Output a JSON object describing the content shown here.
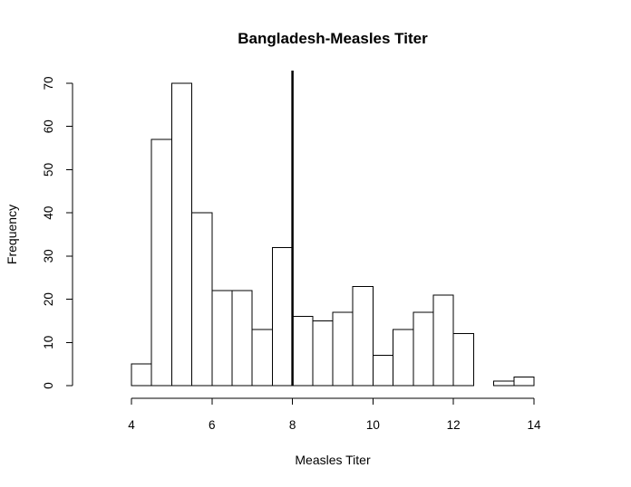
{
  "chart_data": {
    "type": "bar",
    "subtype": "histogram",
    "title": "Bangladesh-Measles Titer",
    "xlabel": "Measles Titer",
    "ylabel": "Frequency",
    "bin_width": 0.5,
    "bins": [
      {
        "start": 4.0,
        "end": 4.5,
        "count": 5
      },
      {
        "start": 4.5,
        "end": 5.0,
        "count": 57
      },
      {
        "start": 5.0,
        "end": 5.5,
        "count": 70
      },
      {
        "start": 5.5,
        "end": 6.0,
        "count": 40
      },
      {
        "start": 6.0,
        "end": 6.5,
        "count": 22
      },
      {
        "start": 6.5,
        "end": 7.0,
        "count": 22
      },
      {
        "start": 7.0,
        "end": 7.5,
        "count": 13
      },
      {
        "start": 7.5,
        "end": 8.0,
        "count": 32
      },
      {
        "start": 8.0,
        "end": 8.5,
        "count": 16
      },
      {
        "start": 8.5,
        "end": 9.0,
        "count": 15
      },
      {
        "start": 9.0,
        "end": 9.5,
        "count": 17
      },
      {
        "start": 9.5,
        "end": 10.0,
        "count": 23
      },
      {
        "start": 10.0,
        "end": 10.5,
        "count": 7
      },
      {
        "start": 10.5,
        "end": 11.0,
        "count": 13
      },
      {
        "start": 11.0,
        "end": 11.5,
        "count": 17
      },
      {
        "start": 11.5,
        "end": 12.0,
        "count": 21
      },
      {
        "start": 12.0,
        "end": 12.5,
        "count": 12
      },
      {
        "start": 12.5,
        "end": 13.0,
        "count": 0
      },
      {
        "start": 13.0,
        "end": 13.5,
        "count": 1
      },
      {
        "start": 13.5,
        "end": 14.0,
        "count": 2
      }
    ],
    "xticks": [
      4,
      6,
      8,
      10,
      12,
      14
    ],
    "yticks": [
      0,
      10,
      20,
      30,
      40,
      50,
      60,
      70
    ],
    "xlim": [
      4,
      14
    ],
    "ylim": [
      0,
      70
    ],
    "reference_line": {
      "x": 8,
      "color": "#000000"
    },
    "bar_fill": "#ffffff",
    "bar_stroke": "#000000",
    "grid": false,
    "legend": "none"
  }
}
